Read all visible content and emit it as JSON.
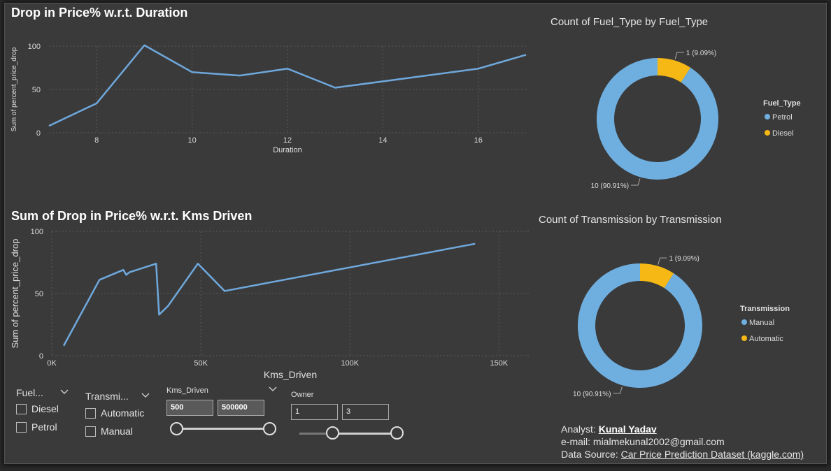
{
  "chart1": {
    "title": "Drop in Price% w.r.t. Duration",
    "chart_data": {
      "type": "line",
      "xlabel": "Duration",
      "ylabel": "Sum of percent_price_drop",
      "xlim": [
        7,
        17
      ],
      "ylim": [
        0,
        100
      ],
      "x_ticks": [
        "8",
        "10",
        "12",
        "14",
        "16"
      ],
      "y_ticks": [
        "0",
        "50",
        "100"
      ],
      "x": [
        7,
        8,
        9,
        10,
        11,
        12,
        13,
        16,
        17
      ],
      "values": [
        8,
        34,
        101,
        70,
        66,
        74,
        52,
        74,
        90
      ],
      "color": "#6fa8dc",
      "grid": true
    }
  },
  "chart2": {
    "title": "Sum of Drop in Price% w.r.t. Kms Driven",
    "chart_data": {
      "type": "line",
      "xlabel": "Kms_Driven",
      "ylabel": "Sum of percent_price_drop",
      "xlim": [
        0,
        160000
      ],
      "ylim": [
        0,
        100
      ],
      "x_ticks": [
        "0K",
        "50K",
        "100K",
        "150K"
      ],
      "y_ticks": [
        "0",
        "50",
        "100"
      ],
      "x": [
        4000,
        16000,
        24000,
        25000,
        26000,
        35000,
        36000,
        39000,
        49000,
        58000,
        142000
      ],
      "values": [
        8,
        61,
        69,
        65,
        67,
        74,
        33,
        40,
        74,
        52,
        90
      ],
      "color": "#6fa8dc",
      "grid": true
    }
  },
  "donut1": {
    "title": "Count of Fuel_Type by Fuel_Type",
    "chart_data": {
      "type": "pie",
      "legend_title": "Fuel_Type",
      "categories": [
        "Petrol",
        "Diesel"
      ],
      "values": [
        10,
        1
      ],
      "labels": [
        "10 (90.91%)",
        "1 (9.09%)"
      ],
      "colors": [
        "#6fafe0",
        "#f5b814"
      ],
      "legend": "right"
    }
  },
  "donut2": {
    "title": "Count of Transmission by Transmission",
    "chart_data": {
      "type": "pie",
      "legend_title": "Transmission",
      "categories": [
        "Manual",
        "Automatic"
      ],
      "values": [
        10,
        1
      ],
      "labels": [
        "10 (90.91%)",
        "1 (9.09%)"
      ],
      "colors": [
        "#6fafe0",
        "#f5b814"
      ],
      "legend": "right"
    }
  },
  "slicers": {
    "fuel": {
      "header": "Fuel...",
      "items": [
        "Diesel",
        "Petrol"
      ]
    },
    "transmission": {
      "header": "Transmi...",
      "items": [
        "Automatic",
        "Manual"
      ]
    },
    "kms": {
      "header": "Kms_Driven",
      "min": "500",
      "max": "500000"
    },
    "owner": {
      "header": "Owner",
      "min": "1",
      "max": "3"
    }
  },
  "footer": {
    "analyst_label": "Analyst: ",
    "analyst_name": "Kunal Yadav",
    "email_label": "e-mail: ",
    "email": "mialmekunal2002@gmail.com",
    "source_label": "Data Source: ",
    "source": "Car Price Prediction Dataset (kaggle.com)"
  }
}
